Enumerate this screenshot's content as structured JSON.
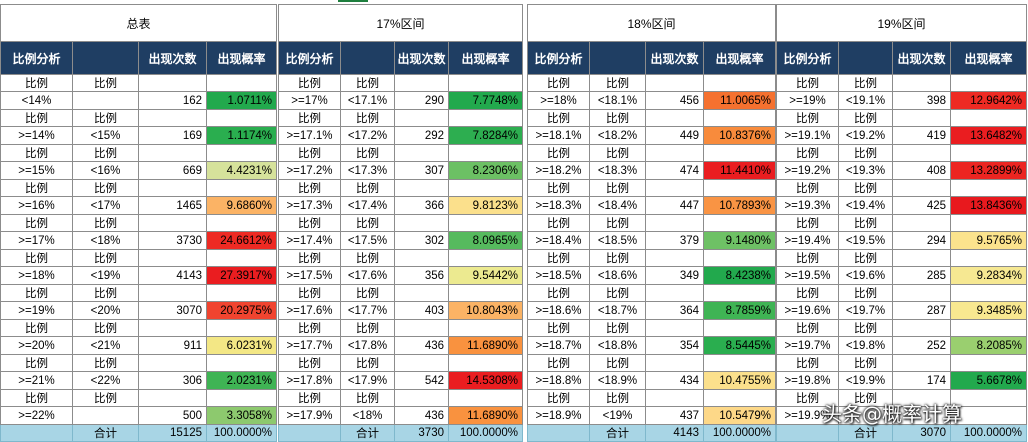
{
  "blocks": [
    {
      "title": "总表",
      "headers": [
        "比例分析",
        "",
        "出现次数",
        "出现概率"
      ],
      "sub": [
        "比例",
        "比例"
      ],
      "rows": [
        {
          "lo": "<14%",
          "hi": "",
          "count": "162",
          "pct": "1.0711%",
          "color": "#22a94d"
        },
        {
          "lo": ">=14%",
          "hi": "<15%",
          "count": "169",
          "pct": "1.1174%",
          "color": "#2aae4f"
        },
        {
          "lo": ">=15%",
          "hi": "<16%",
          "count": "669",
          "pct": "4.4231%",
          "color": "#d6e29b"
        },
        {
          "lo": ">=16%",
          "hi": "<17%",
          "count": "1465",
          "pct": "9.6860%",
          "color": "#fbb365"
        },
        {
          "lo": ">=17%",
          "hi": "<18%",
          "count": "3730",
          "pct": "24.6612%",
          "color": "#ee2a23"
        },
        {
          "lo": ">=18%",
          "hi": "<19%",
          "count": "4143",
          "pct": "27.3917%",
          "color": "#ea1d20"
        },
        {
          "lo": ">=19%",
          "hi": "<20%",
          "count": "3070",
          "pct": "20.2975%",
          "color": "#f1442f"
        },
        {
          "lo": ">=20%",
          "hi": "<21%",
          "count": "911",
          "pct": "6.0231%",
          "color": "#f3e785"
        },
        {
          "lo": ">=21%",
          "hi": "<22%",
          "count": "306",
          "pct": "2.0231%",
          "color": "#3fb454"
        },
        {
          "lo": ">=22%",
          "hi": "",
          "count": "500",
          "pct": "3.3058%",
          "color": "#8dc96e"
        }
      ],
      "total": {
        "label": "合计",
        "count": "15125",
        "pct": "100.0000%"
      }
    },
    {
      "title": "17%区间",
      "headers": [
        "比例分析",
        "",
        "出现次数",
        "出现概率"
      ],
      "sub": [
        "比例",
        "比例"
      ],
      "rows": [
        {
          "lo": ">=17%",
          "hi": "<17.1%",
          "count": "290",
          "pct": "7.7748%",
          "color": "#22a94d"
        },
        {
          "lo": ">=17.1%",
          "hi": "<17.2%",
          "count": "292",
          "pct": "7.8284%",
          "color": "#2dae50"
        },
        {
          "lo": ">=17.2%",
          "hi": "<17.3%",
          "count": "307",
          "pct": "8.2306%",
          "color": "#6cc064"
        },
        {
          "lo": ">=17.3%",
          "hi": "<17.4%",
          "count": "366",
          "pct": "9.8123%",
          "color": "#fbe08c"
        },
        {
          "lo": ">=17.4%",
          "hi": "<17.5%",
          "count": "302",
          "pct": "8.0965%",
          "color": "#56ba5e"
        },
        {
          "lo": ">=17.5%",
          "hi": "<17.6%",
          "count": "356",
          "pct": "9.5442%",
          "color": "#ecea90"
        },
        {
          "lo": ">=17.6%",
          "hi": "<17.7%",
          "count": "403",
          "pct": "10.8043%",
          "color": "#fbb365"
        },
        {
          "lo": ">=17.7%",
          "hi": "<17.8%",
          "count": "436",
          "pct": "11.6890%",
          "color": "#f9923f"
        },
        {
          "lo": ">=17.8%",
          "hi": "<17.9%",
          "count": "542",
          "pct": "14.5308%",
          "color": "#ea1d20"
        },
        {
          "lo": ">=17.9%",
          "hi": "<18%",
          "count": "436",
          "pct": "11.6890%",
          "color": "#f9923f"
        }
      ],
      "total": {
        "label": "合计",
        "count": "3730",
        "pct": "100.0000%"
      }
    },
    {
      "title": "18%区间",
      "headers": [
        "比例分析",
        "",
        "出现次数",
        "出现概率"
      ],
      "sub": [
        "比例",
        "比例"
      ],
      "rows": [
        {
          "lo": ">=18%",
          "hi": "<18.1%",
          "count": "456",
          "pct": "11.0065%",
          "color": "#f5712f"
        },
        {
          "lo": ">=18.1%",
          "hi": "<18.2%",
          "count": "449",
          "pct": "10.8376%",
          "color": "#f88b3c"
        },
        {
          "lo": ">=18.2%",
          "hi": "<18.3%",
          "count": "474",
          "pct": "11.4410%",
          "color": "#ea1d20"
        },
        {
          "lo": ">=18.3%",
          "hi": "<18.4%",
          "count": "447",
          "pct": "10.7893%",
          "color": "#f99444"
        },
        {
          "lo": ">=18.4%",
          "hi": "<18.5%",
          "count": "379",
          "pct": "9.1480%",
          "color": "#6ec165"
        },
        {
          "lo": ">=18.5%",
          "hi": "<18.6%",
          "count": "349",
          "pct": "8.4238%",
          "color": "#22a94d"
        },
        {
          "lo": ">=18.6%",
          "hi": "<18.7%",
          "count": "364",
          "pct": "8.7859%",
          "color": "#3fb454"
        },
        {
          "lo": ">=18.7%",
          "hi": "<18.8%",
          "count": "354",
          "pct": "8.5445%",
          "color": "#2aae4f"
        },
        {
          "lo": ">=18.8%",
          "hi": "<18.9%",
          "count": "434",
          "pct": "10.4755%",
          "color": "#fbe08c"
        },
        {
          "lo": ">=18.9%",
          "hi": "<19%",
          "count": "437",
          "pct": "10.5479%",
          "color": "#fdd888"
        }
      ],
      "total": {
        "label": "合计",
        "count": "4143",
        "pct": "100.0000%"
      }
    },
    {
      "title": "19%区间",
      "headers": [
        "比例分析",
        "",
        "出现次数",
        "出现概率"
      ],
      "sub": [
        "比例",
        "比例"
      ],
      "rows": [
        {
          "lo": ">=19%",
          "hi": "<19.1%",
          "count": "398",
          "pct": "12.9642%",
          "color": "#ee2a23"
        },
        {
          "lo": ">=19.1%",
          "hi": "<19.2%",
          "count": "419",
          "pct": "13.6482%",
          "color": "#ea1d20"
        },
        {
          "lo": ">=19.2%",
          "hi": "<19.3%",
          "count": "408",
          "pct": "13.2899%",
          "color": "#ec2521"
        },
        {
          "lo": ">=19.3%",
          "hi": "<19.4%",
          "count": "425",
          "pct": "13.8436%",
          "color": "#e8191e"
        },
        {
          "lo": ">=19.4%",
          "hi": "<19.5%",
          "count": "294",
          "pct": "9.5765%",
          "color": "#fbe38d"
        },
        {
          "lo": ">=19.5%",
          "hi": "<19.6%",
          "count": "285",
          "pct": "9.2834%",
          "color": "#f6e892"
        },
        {
          "lo": ">=19.6%",
          "hi": "<19.7%",
          "count": "287",
          "pct": "9.3485%",
          "color": "#f8e890"
        },
        {
          "lo": ">=19.7%",
          "hi": "<19.8%",
          "count": "252",
          "pct": "8.2085%",
          "color": "#9acf6f"
        },
        {
          "lo": ">=19.8%",
          "hi": "<19.9%",
          "count": "174",
          "pct": "5.6678%",
          "color": "#22a94d"
        },
        {
          "lo": ">=19.9%",
          "hi": "",
          "count": "",
          "pct": "",
          "color": "#ffffff"
        }
      ],
      "total": {
        "label": "合计",
        "count": "3070",
        "pct": "100.0000%"
      }
    }
  ],
  "watermark": "头条@概率计算"
}
